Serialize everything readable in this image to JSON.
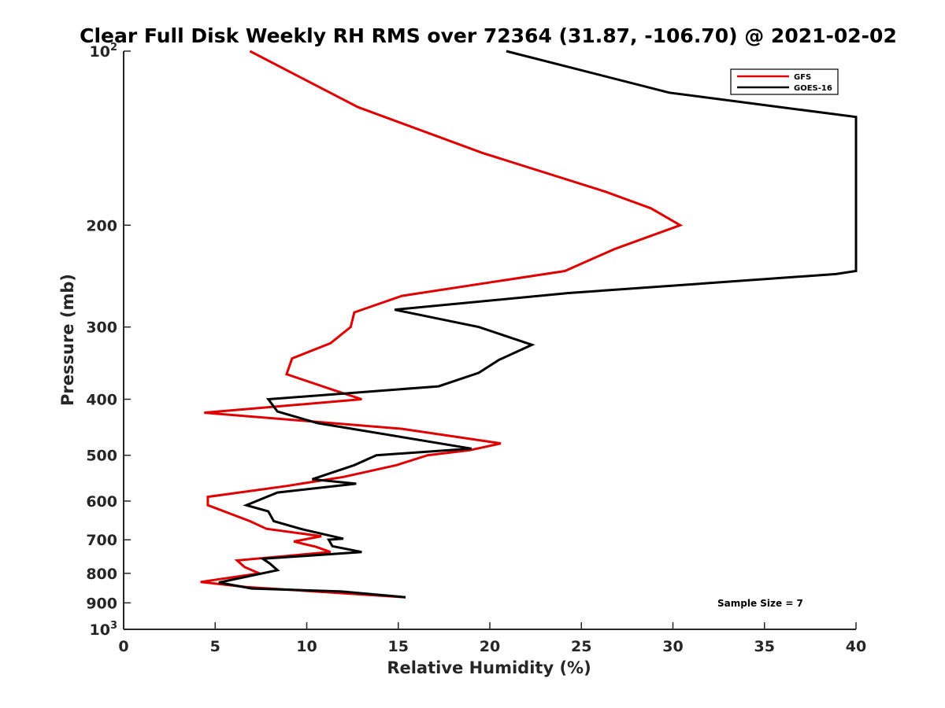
{
  "chart_data": {
    "type": "line",
    "title": "Clear Full Disk Weekly RH RMS over 72364 (31.87, -106.70) @ 2021-02-02",
    "xlabel": "Relative Humidity (%)",
    "ylabel": "Pressure (mb)",
    "xlim": [
      0,
      40
    ],
    "ylim": [
      100,
      1000
    ],
    "y_scale": "log",
    "y_reversed": true,
    "x_ticks": [
      0,
      5,
      10,
      15,
      20,
      25,
      30,
      35,
      40
    ],
    "x_tick_labels": [
      "0",
      "5",
      "10",
      "15",
      "20",
      "25",
      "30",
      "35",
      "40"
    ],
    "y_ticks": [
      {
        "value": 100,
        "base": "10",
        "exp": "2"
      },
      {
        "value": 200,
        "label": "200"
      },
      {
        "value": 300,
        "label": "300"
      },
      {
        "value": 400,
        "label": "400"
      },
      {
        "value": 500,
        "label": "500"
      },
      {
        "value": 600,
        "label": "600"
      },
      {
        "value": 700,
        "label": "700"
      },
      {
        "value": 800,
        "label": "800"
      },
      {
        "value": 900,
        "label": "900"
      },
      {
        "value": 1000,
        "base": "10",
        "exp": "3"
      }
    ],
    "grid": false,
    "legend_position": "top-right",
    "annotation": "Sample Size = 7",
    "series": [
      {
        "name": "GFS",
        "color": "#e00000",
        "points": [
          [
            6.9,
            100
          ],
          [
            12.8,
            125
          ],
          [
            19.6,
            150
          ],
          [
            26.3,
            175
          ],
          [
            28.8,
            187
          ],
          [
            30.4,
            200
          ],
          [
            26.8,
            220
          ],
          [
            24.1,
            240
          ],
          [
            15.2,
            265
          ],
          [
            12.6,
            283
          ],
          [
            12.4,
            300
          ],
          [
            11.3,
            320
          ],
          [
            9.2,
            340
          ],
          [
            8.9,
            362
          ],
          [
            11.4,
            385
          ],
          [
            13.0,
            400
          ],
          [
            4.4,
            422
          ],
          [
            15.2,
            450
          ],
          [
            20.6,
            477
          ],
          [
            18.9,
            490
          ],
          [
            16.6,
            500
          ],
          [
            14.9,
            520
          ],
          [
            12.0,
            545
          ],
          [
            8.9,
            565
          ],
          [
            4.6,
            590
          ],
          [
            4.6,
            610
          ],
          [
            6.9,
            650
          ],
          [
            7.8,
            670
          ],
          [
            10.8,
            690
          ],
          [
            9.3,
            705
          ],
          [
            10.5,
            720
          ],
          [
            11.3,
            735
          ],
          [
            6.2,
            760
          ],
          [
            6.6,
            780
          ],
          [
            7.4,
            800
          ],
          [
            4.2,
            828
          ],
          [
            6.7,
            845
          ],
          [
            15.4,
            880
          ]
        ]
      },
      {
        "name": "GOES-16",
        "color": "#000000",
        "points": [
          [
            20.9,
            100
          ],
          [
            29.8,
            118
          ],
          [
            40.0,
            130
          ],
          [
            40.0,
            240
          ],
          [
            38.9,
            243
          ],
          [
            24.3,
            262
          ],
          [
            14.8,
            280
          ],
          [
            19.4,
            300
          ],
          [
            22.3,
            322
          ],
          [
            20.5,
            342
          ],
          [
            19.4,
            360
          ],
          [
            17.2,
            380
          ],
          [
            7.9,
            400
          ],
          [
            8.4,
            420
          ],
          [
            10.6,
            440
          ],
          [
            19.0,
            487
          ],
          [
            13.8,
            500
          ],
          [
            12.6,
            520
          ],
          [
            10.3,
            550
          ],
          [
            12.7,
            560
          ],
          [
            8.4,
            580
          ],
          [
            6.7,
            610
          ],
          [
            7.9,
            625
          ],
          [
            8.2,
            650
          ],
          [
            9.8,
            672
          ],
          [
            12.0,
            697
          ],
          [
            11.2,
            700
          ],
          [
            11.4,
            718
          ],
          [
            13.0,
            735
          ],
          [
            7.6,
            755
          ],
          [
            8.0,
            770
          ],
          [
            8.4,
            790
          ],
          [
            5.2,
            830
          ],
          [
            7.0,
            850
          ],
          [
            11.9,
            860
          ],
          [
            15.4,
            880
          ]
        ]
      }
    ]
  }
}
